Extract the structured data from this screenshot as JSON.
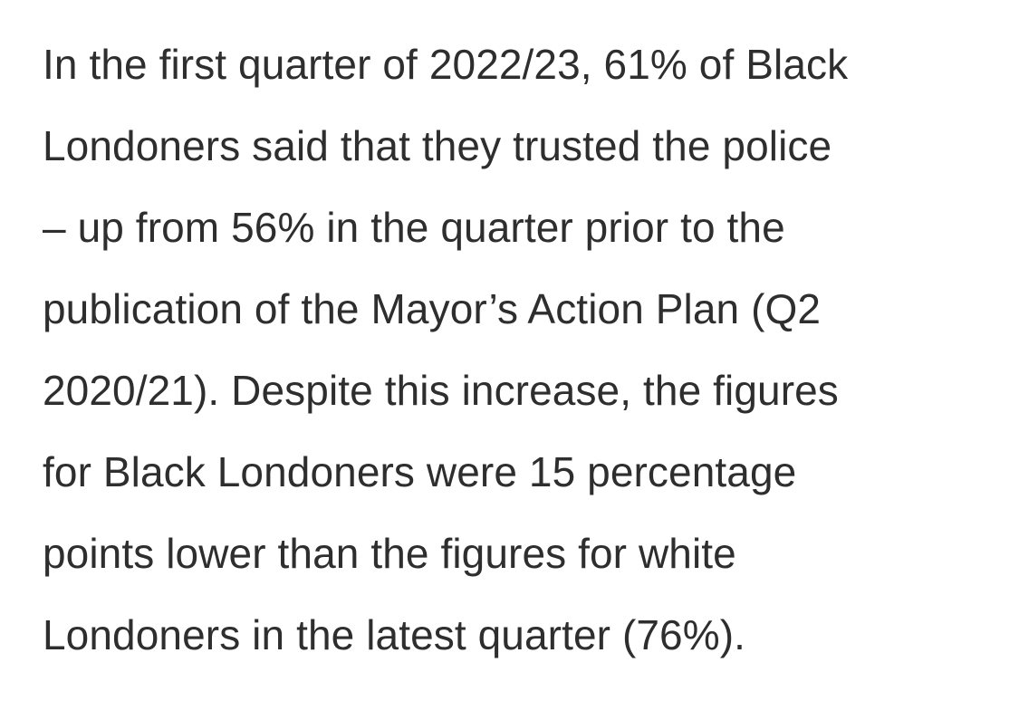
{
  "article": {
    "lines": [
      "In the first quarter of 2022/23, 61% of Black",
      "Londoners said that they trusted the police",
      "– up from 56% in the quarter prior to the",
      "publication of the Mayor’s Action Plan (Q2",
      "2020/21). Despite this increase, the figures",
      "for Black Londoners were 15 percentage",
      "points lower than the figures for white",
      "Londoners in the latest quarter (76%)."
    ]
  }
}
